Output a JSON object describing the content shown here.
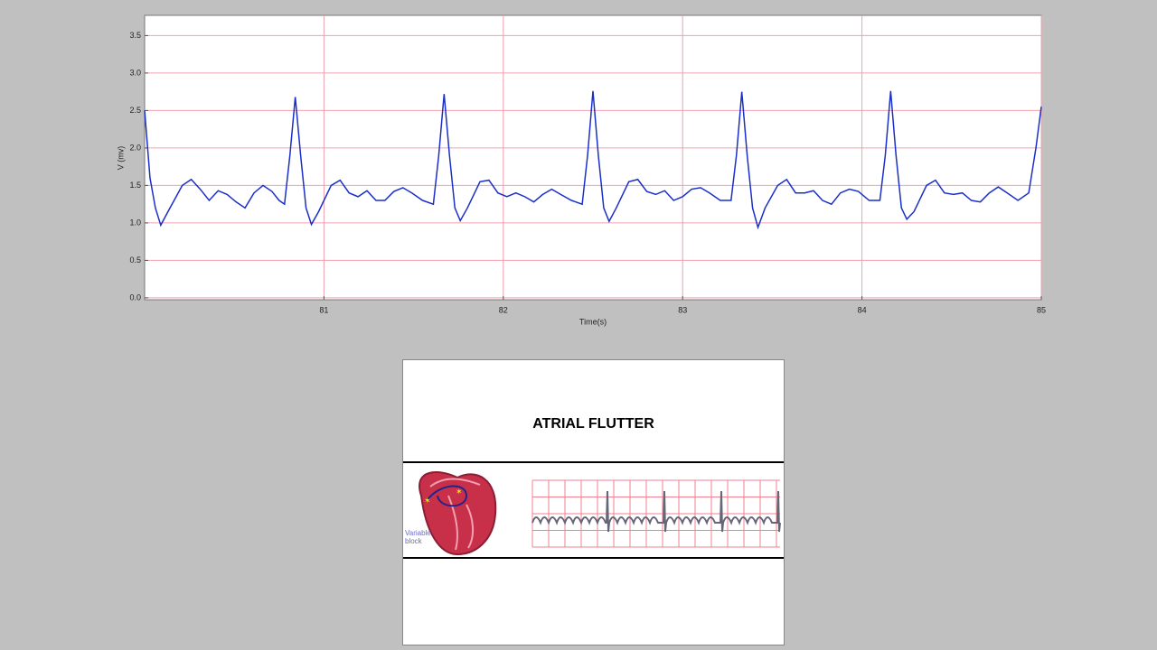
{
  "chart_data": {
    "type": "line",
    "xlabel": "Time(s)",
    "ylabel": "V (mv)",
    "x": [
      80.0,
      80.03,
      80.06,
      80.09,
      80.13,
      80.21,
      80.26,
      80.31,
      80.36,
      80.41,
      80.46,
      80.51,
      80.56,
      80.61,
      80.66,
      80.71,
      80.75,
      80.78,
      80.81,
      80.84,
      80.87,
      80.9,
      80.93,
      80.97,
      81.04,
      81.09,
      81.14,
      81.19,
      81.24,
      81.29,
      81.34,
      81.39,
      81.44,
      81.49,
      81.55,
      81.61,
      81.64,
      81.67,
      81.7,
      81.73,
      81.76,
      81.8,
      81.87,
      81.92,
      81.97,
      82.02,
      82.07,
      82.12,
      82.17,
      82.22,
      82.27,
      82.32,
      82.38,
      82.44,
      82.47,
      82.5,
      82.53,
      82.56,
      82.59,
      82.63,
      82.7,
      82.75,
      82.8,
      82.85,
      82.9,
      82.95,
      83.0,
      83.05,
      83.1,
      83.15,
      83.21,
      83.27,
      83.3,
      83.33,
      83.36,
      83.39,
      83.42,
      83.46,
      83.53,
      83.58,
      83.63,
      83.68,
      83.73,
      83.78,
      83.83,
      83.88,
      83.93,
      83.98,
      84.04,
      84.1,
      84.13,
      84.16,
      84.19,
      84.22,
      84.25,
      84.29,
      84.36,
      84.41,
      84.46,
      84.51,
      84.56,
      84.61,
      84.66,
      84.71,
      84.76,
      84.81,
      84.87,
      84.93,
      84.97,
      85.0
    ],
    "values": [
      2.5,
      1.6,
      1.2,
      0.97,
      1.15,
      1.5,
      1.58,
      1.45,
      1.3,
      1.43,
      1.38,
      1.28,
      1.2,
      1.4,
      1.5,
      1.42,
      1.3,
      1.25,
      1.9,
      2.68,
      1.9,
      1.2,
      0.98,
      1.15,
      1.5,
      1.57,
      1.4,
      1.35,
      1.43,
      1.3,
      1.3,
      1.42,
      1.47,
      1.4,
      1.3,
      1.25,
      1.9,
      2.72,
      1.9,
      1.2,
      1.03,
      1.2,
      1.55,
      1.57,
      1.4,
      1.35,
      1.4,
      1.35,
      1.28,
      1.38,
      1.45,
      1.38,
      1.3,
      1.25,
      1.9,
      2.76,
      1.9,
      1.2,
      1.02,
      1.2,
      1.55,
      1.58,
      1.42,
      1.38,
      1.43,
      1.3,
      1.35,
      1.45,
      1.47,
      1.4,
      1.3,
      1.3,
      1.9,
      2.75,
      1.9,
      1.2,
      0.94,
      1.2,
      1.5,
      1.58,
      1.4,
      1.4,
      1.43,
      1.3,
      1.25,
      1.4,
      1.45,
      1.42,
      1.3,
      1.3,
      1.9,
      2.76,
      1.9,
      1.2,
      1.05,
      1.15,
      1.5,
      1.57,
      1.4,
      1.38,
      1.4,
      1.3,
      1.28,
      1.4,
      1.48,
      1.4,
      1.3,
      1.4,
      2.0,
      2.55
    ],
    "color": "#1a2fc8",
    "xlim": [
      80.0,
      85.0
    ],
    "xticks": [
      81,
      82,
      83,
      84,
      85
    ],
    "ylim": [
      -0.025,
      3.77
    ],
    "yticks": [
      {
        "value": 0,
        "label": "0.0"
      },
      0.5,
      {
        "value": 1,
        "label": "1.0"
      },
      1.5,
      {
        "value": 2,
        "label": "2.0"
      },
      2.5,
      {
        "value": 3,
        "label": "3.0"
      },
      3.5
    ],
    "grid": true,
    "grid_color": "#f0a0b0"
  },
  "card": {
    "title": "ATRIAL FLUTTER",
    "image_label": "Variable block"
  }
}
